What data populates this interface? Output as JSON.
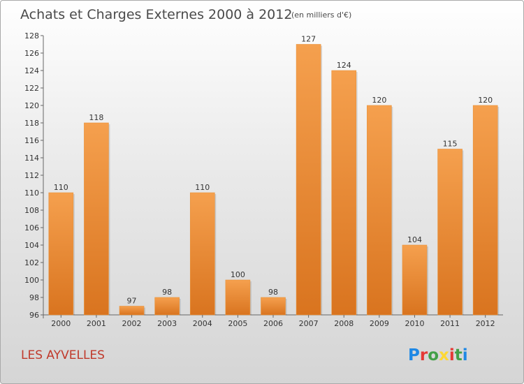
{
  "chart_data": {
    "type": "bar",
    "title": "Achats et Charges Externes 2000 à 2012",
    "subtitle": "(en milliers d'€)",
    "categories": [
      "2000",
      "2001",
      "2002",
      "2003",
      "2004",
      "2005",
      "2006",
      "2007",
      "2008",
      "2009",
      "2010",
      "2011",
      "2012"
    ],
    "values": [
      110,
      118,
      97,
      98,
      110,
      100,
      98,
      127,
      124,
      120,
      104,
      115,
      120
    ],
    "ylim": [
      96,
      128
    ],
    "yticks": [
      96,
      98,
      100,
      102,
      104,
      106,
      108,
      110,
      112,
      114,
      116,
      118,
      120,
      122,
      124,
      126,
      128
    ],
    "grid": false,
    "bar_color_top": "#f5a04e",
    "bar_color_bottom": "#d9741f"
  },
  "commune": "LES AYVELLES",
  "logo": {
    "letters": [
      "P",
      "r",
      "o",
      "x",
      "i",
      "t",
      "i"
    ],
    "colors": [
      "#1e88e5",
      "#e53935",
      "#43a047",
      "#fdd835",
      "#e53935",
      "#43a047",
      "#1e88e5"
    ]
  }
}
